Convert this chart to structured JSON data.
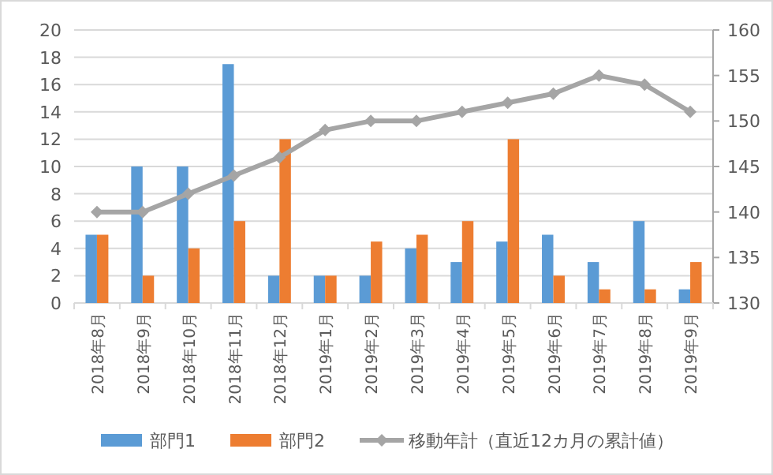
{
  "chart_data": {
    "type": "bar",
    "categories": [
      "2018年8月",
      "2018年9月",
      "2018年10月",
      "2018年11月",
      "2018年12月",
      "2019年1月",
      "2019年2月",
      "2019年3月",
      "2019年4月",
      "2019年5月",
      "2019年6月",
      "2019年7月",
      "2019年8月",
      "2019年9月"
    ],
    "series": [
      {
        "name": "部門1",
        "color": "#5b9bd5",
        "values": [
          5,
          10,
          10,
          17.5,
          2,
          2,
          2,
          4,
          3,
          4.5,
          5,
          3,
          6,
          1
        ]
      },
      {
        "name": "部門2",
        "color": "#ed7d31",
        "values": [
          5,
          2,
          4,
          6,
          12,
          2,
          4.5,
          5,
          6,
          12,
          2,
          1,
          1,
          3
        ]
      },
      {
        "name": "移動年計（直近12カ月の累計値）",
        "type": "line",
        "axis": "y2",
        "marker": "diamond",
        "color": "#a5a5a5",
        "values": [
          140,
          140,
          142,
          144,
          146,
          149,
          150,
          150,
          151,
          152,
          153,
          155,
          154,
          151
        ]
      }
    ],
    "ylim": [
      0,
      20
    ],
    "yticks": [
      0,
      2,
      4,
      6,
      8,
      10,
      12,
      14,
      16,
      18,
      20
    ],
    "y2lim": [
      130,
      160
    ],
    "y2ticks": [
      130,
      135,
      140,
      145,
      150,
      155,
      160
    ],
    "grid": "y",
    "legend": "bottom"
  }
}
